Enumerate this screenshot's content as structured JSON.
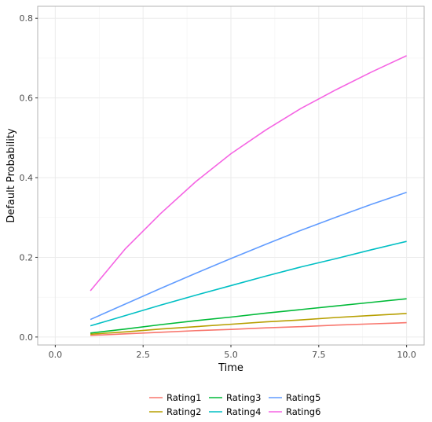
{
  "chart_data": {
    "type": "line",
    "title": "",
    "xlabel": "Time",
    "ylabel": "Default Probability",
    "xlim": [
      -0.5,
      10.5
    ],
    "ylim": [
      -0.02,
      0.83
    ],
    "x_ticks": [
      "0.0",
      "2.5",
      "5.0",
      "7.5",
      "10.0"
    ],
    "y_ticks": [
      "0.0",
      "0.2",
      "0.4",
      "0.6",
      "0.8"
    ],
    "grid": true,
    "legend_position": "bottom",
    "x": [
      1,
      2,
      3,
      4,
      5,
      6,
      7,
      8,
      9,
      10
    ],
    "series": [
      {
        "name": "Rating1",
        "color": "#F8766D",
        "values": [
          0.004,
          0.008,
          0.012,
          0.016,
          0.019,
          0.023,
          0.026,
          0.03,
          0.033,
          0.036
        ]
      },
      {
        "name": "Rating2",
        "color": "#B79F00",
        "values": [
          0.007,
          0.013,
          0.02,
          0.026,
          0.032,
          0.038,
          0.043,
          0.049,
          0.054,
          0.059
        ]
      },
      {
        "name": "Rating3",
        "color": "#00BA38",
        "values": [
          0.01,
          0.02,
          0.031,
          0.041,
          0.05,
          0.06,
          0.069,
          0.078,
          0.087,
          0.096
        ]
      },
      {
        "name": "Rating4",
        "color": "#00BFC4",
        "values": [
          0.028,
          0.054,
          0.08,
          0.105,
          0.129,
          0.153,
          0.176,
          0.197,
          0.219,
          0.24
        ]
      },
      {
        "name": "Rating5",
        "color": "#619CFF",
        "values": [
          0.044,
          0.083,
          0.122,
          0.16,
          0.197,
          0.233,
          0.268,
          0.301,
          0.333,
          0.363
        ]
      },
      {
        "name": "Rating6",
        "color": "#F564E3",
        "values": [
          0.116,
          0.222,
          0.31,
          0.39,
          0.46,
          0.52,
          0.574,
          0.621,
          0.665,
          0.706
        ]
      }
    ]
  }
}
